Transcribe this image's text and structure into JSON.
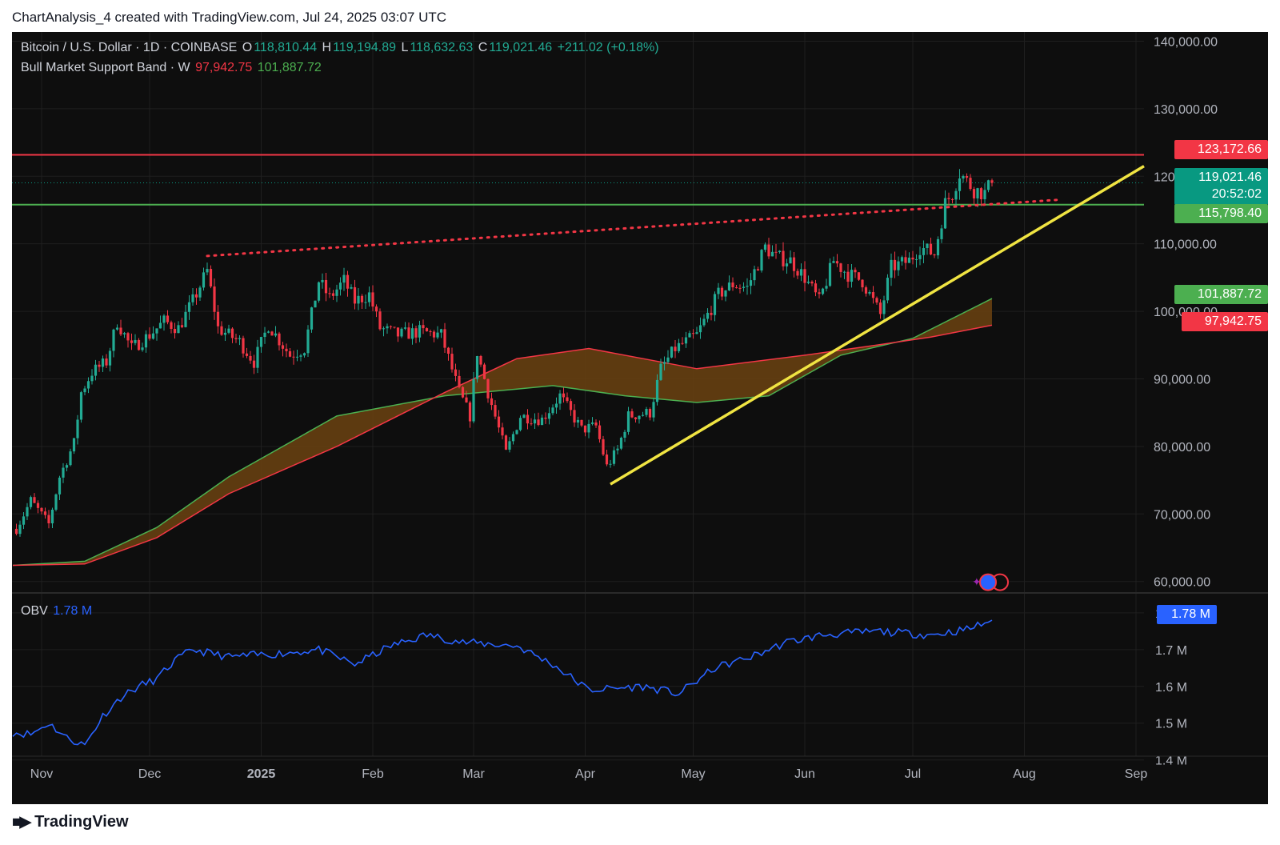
{
  "header": {
    "caption": "ChartAnalysis_4 created with TradingView.com, Jul 24, 2025 03:07 UTC"
  },
  "legend": {
    "symbol": "Bitcoin / U.S. Dollar · 1D · COINBASE",
    "o_label": "O",
    "o_value": "118,810.44",
    "h_label": "H",
    "h_value": "119,194.89",
    "l_label": "L",
    "l_value": "118,632.63",
    "c_label": "C",
    "c_value": "119,021.46",
    "change": "+211.02 (+0.18%)",
    "indicator": "Bull Market Support Band · W",
    "band_low": "97,942.75",
    "band_high": "101,887.72"
  },
  "obv_legend": {
    "label": "OBV",
    "value": "1.78 M"
  },
  "price_tags": {
    "resistance": "123,172.66",
    "last_price": "119,021.46",
    "countdown": "20:52:02",
    "support": "115,798.40",
    "band_high": "101,887.72",
    "band_low": "97,942.75",
    "obv": "1.78 M"
  },
  "colors": {
    "background": "#0e0e0e",
    "up": "#22ab94",
    "down": "#f23645",
    "resistance": "#f23645",
    "support": "#4caf50",
    "trendline": "#f0e442",
    "obv": "#2962ff",
    "band_fill": "#6b4210"
  },
  "footer": {
    "brand": "TradingView"
  },
  "chart_data": [
    {
      "type": "candlestick",
      "title": "Bitcoin / U.S. Dollar · 1D · COINBASE",
      "x_labels": [
        "Nov",
        "Dec",
        "2025",
        "Feb",
        "Mar",
        "Apr",
        "May",
        "Jun",
        "Jul",
        "Aug",
        "Sep"
      ],
      "y_ticks": [
        "140,000.00",
        "130,000.00",
        "120,000.00",
        "110,000.00",
        "100,000.00",
        "90,000.00",
        "80,000.00",
        "70,000.00",
        "60,000.00"
      ],
      "ylim": [
        59000,
        141000
      ],
      "last_close": 119021.46,
      "series": [
        {
          "name": "Bull Market Support Band · W",
          "upper_last": 101887.72,
          "lower_last": 97942.75
        }
      ],
      "levels": {
        "resistance": 123172.66,
        "support": 115798.4
      },
      "close_path": [
        [
          "2024-10-25",
          67800
        ],
        [
          "2024-10-29",
          72000
        ],
        [
          "2024-11-03",
          68500
        ],
        [
          "2024-11-06",
          75500
        ],
        [
          "2024-11-10",
          80500
        ],
        [
          "2024-11-12",
          88000
        ],
        [
          "2024-11-15",
          91000
        ],
        [
          "2024-11-19",
          92500
        ],
        [
          "2024-11-22",
          98500
        ],
        [
          "2024-11-26",
          94500
        ],
        [
          "2024-12-01",
          96500
        ],
        [
          "2024-12-05",
          98500
        ],
        [
          "2024-12-09",
          97500
        ],
        [
          "2024-12-13",
          101500
        ],
        [
          "2024-12-17",
          106000
        ],
        [
          "2024-12-20",
          97500
        ],
        [
          "2024-12-26",
          95500
        ],
        [
          "2024-12-30",
          92500
        ],
        [
          "2025-01-03",
          98000
        ],
        [
          "2025-01-09",
          93500
        ],
        [
          "2025-01-13",
          94500
        ],
        [
          "2025-01-17",
          104500
        ],
        [
          "2025-01-20",
          102000
        ],
        [
          "2025-01-24",
          104500
        ],
        [
          "2025-01-27",
          101500
        ],
        [
          "2025-01-31",
          102500
        ],
        [
          "2025-02-03",
          97500
        ],
        [
          "2025-02-08",
          96500
        ],
        [
          "2025-02-14",
          97000
        ],
        [
          "2025-02-20",
          96500
        ],
        [
          "2025-02-25",
          88000
        ],
        [
          "2025-02-28",
          84500
        ],
        [
          "2025-03-02",
          94000
        ],
        [
          "2025-03-05",
          88000
        ],
        [
          "2025-03-10",
          79000
        ],
        [
          "2025-03-14",
          84500
        ],
        [
          "2025-03-20",
          84000
        ],
        [
          "2025-03-25",
          87500
        ],
        [
          "2025-03-31",
          82500
        ],
        [
          "2025-04-04",
          83000
        ],
        [
          "2025-04-07",
          77000
        ],
        [
          "2025-04-10",
          79500
        ],
        [
          "2025-04-13",
          84500
        ],
        [
          "2025-04-19",
          85000
        ],
        [
          "2025-04-22",
          91500
        ],
        [
          "2025-04-26",
          94500
        ],
        [
          "2025-05-02",
          96500
        ],
        [
          "2025-05-08",
          102500
        ],
        [
          "2025-05-12",
          104000
        ],
        [
          "2025-05-16",
          103500
        ],
        [
          "2025-05-21",
          109500
        ],
        [
          "2025-05-24",
          108000
        ],
        [
          "2025-05-28",
          107500
        ],
        [
          "2025-06-01",
          105000
        ],
        [
          "2025-06-05",
          101500
        ],
        [
          "2025-06-09",
          107500
        ],
        [
          "2025-06-13",
          105500
        ],
        [
          "2025-06-17",
          104500
        ],
        [
          "2025-06-22",
          99500
        ],
        [
          "2025-06-25",
          106500
        ],
        [
          "2025-06-30",
          107500
        ],
        [
          "2025-07-03",
          109500
        ],
        [
          "2025-07-07",
          108500
        ],
        [
          "2025-07-10",
          116000
        ],
        [
          "2025-07-12",
          117500
        ],
        [
          "2025-07-14",
          120500
        ],
        [
          "2025-07-18",
          118000
        ],
        [
          "2025-07-21",
          117500
        ],
        [
          "2025-07-23",
          119021
        ]
      ]
    },
    {
      "type": "line",
      "title": "OBV",
      "y_ticks": [
        "1.8 M",
        "1.7 M",
        "1.6 M",
        "1.5 M",
        "1.4 M"
      ],
      "ylim": [
        1.395,
        1.815
      ],
      "series": [
        {
          "name": "OBV",
          "last": 1.78
        }
      ]
    }
  ]
}
